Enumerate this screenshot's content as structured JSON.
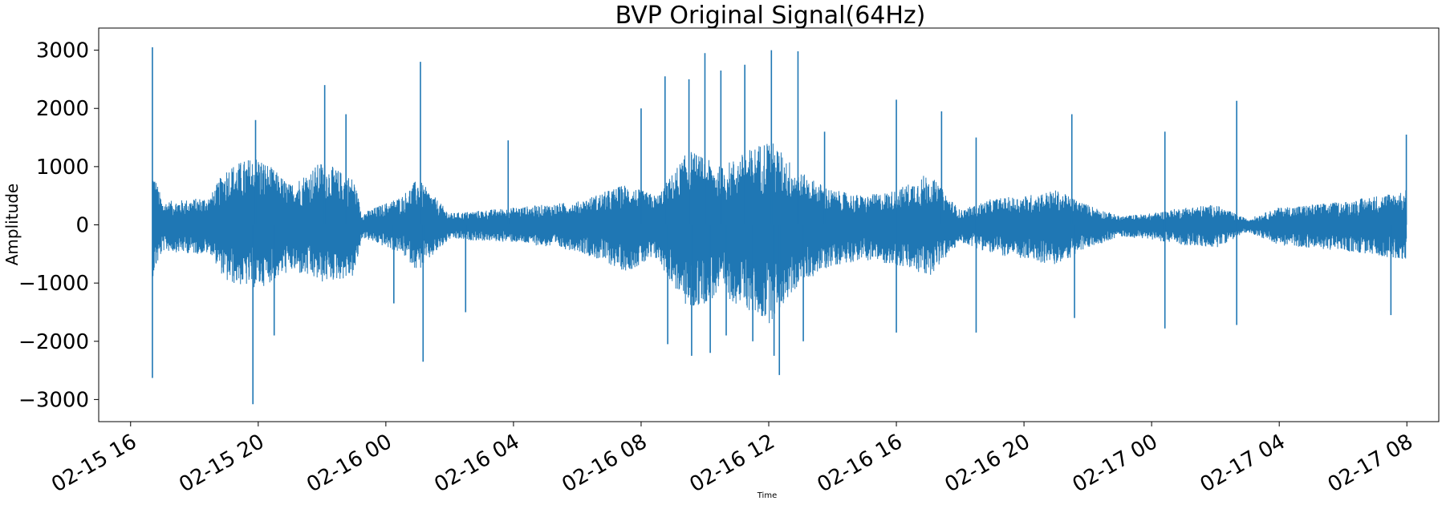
{
  "chart_data": {
    "type": "line",
    "title": "BVP Original Signal(64Hz)",
    "xlabel": "Time",
    "ylabel": "Amplitude",
    "grid": false,
    "legend": "none",
    "series_color": "#1f77b4",
    "x_range": [
      "2016-02-15 15:00",
      "2016-02-17 09:00"
    ],
    "x_data_range": [
      "2016-02-15 16:41",
      "2016-02-17 07:59"
    ],
    "ylim": [
      -3380,
      3380
    ],
    "xticks": [
      {
        "label": "02-15 16",
        "t": "2016-02-15 16:00"
      },
      {
        "label": "02-15 20",
        "t": "2016-02-15 20:00"
      },
      {
        "label": "02-16 00",
        "t": "2016-02-16 00:00"
      },
      {
        "label": "02-16 04",
        "t": "2016-02-16 04:00"
      },
      {
        "label": "02-16 08",
        "t": "2016-02-16 08:00"
      },
      {
        "label": "02-16 12",
        "t": "2016-02-16 12:00"
      },
      {
        "label": "02-16 16",
        "t": "2016-02-16 16:00"
      },
      {
        "label": "02-16 20",
        "t": "2016-02-16 20:00"
      },
      {
        "label": "02-17 00",
        "t": "2016-02-17 00:00"
      },
      {
        "label": "02-17 04",
        "t": "2016-02-17 04:00"
      },
      {
        "label": "02-17 08",
        "t": "2016-02-17 08:00"
      }
    ],
    "yticks": [
      {
        "label": "3000",
        "v": 3000
      },
      {
        "label": "2000",
        "v": 2000
      },
      {
        "label": "1000",
        "v": 1000
      },
      {
        "label": "0",
        "v": 0
      },
      {
        "label": "−1000",
        "v": -1000
      },
      {
        "label": "−2000",
        "v": -2000
      },
      {
        "label": "−3000",
        "v": -3000
      }
    ],
    "envelope": [
      {
        "t": "2016-02-15 16:41",
        "upper": 1000,
        "lower": -900
      },
      {
        "t": "2016-02-15 17:00",
        "upper": 400,
        "lower": -450
      },
      {
        "t": "2016-02-15 18:00",
        "upper": 450,
        "lower": -500
      },
      {
        "t": "2016-02-15 18:30",
        "upper": 500,
        "lower": -500
      },
      {
        "t": "2016-02-15 19:00",
        "upper": 1000,
        "lower": -1000
      },
      {
        "t": "2016-02-15 20:00",
        "upper": 1200,
        "lower": -1100
      },
      {
        "t": "2016-02-15 21:00",
        "upper": 700,
        "lower": -800
      },
      {
        "t": "2016-02-15 22:00",
        "upper": 1100,
        "lower": -1000
      },
      {
        "t": "2016-02-15 23:00",
        "upper": 800,
        "lower": -900
      },
      {
        "t": "2016-02-15 23:15",
        "upper": 200,
        "lower": -220
      },
      {
        "t": "2016-02-16 00:30",
        "upper": 500,
        "lower": -500
      },
      {
        "t": "2016-02-16 01:00",
        "upper": 800,
        "lower": -800
      },
      {
        "t": "2016-02-16 02:00",
        "upper": 200,
        "lower": -250
      },
      {
        "t": "2016-02-16 04:00",
        "upper": 300,
        "lower": -300
      },
      {
        "t": "2016-02-16 06:00",
        "upper": 400,
        "lower": -450
      },
      {
        "t": "2016-02-16 07:30",
        "upper": 700,
        "lower": -800
      },
      {
        "t": "2016-02-16 08:30",
        "upper": 500,
        "lower": -600
      },
      {
        "t": "2016-02-16 09:30",
        "upper": 1300,
        "lower": -1500
      },
      {
        "t": "2016-02-16 10:30",
        "upper": 1000,
        "lower": -1200
      },
      {
        "t": "2016-02-16 12:00",
        "upper": 1500,
        "lower": -1700
      },
      {
        "t": "2016-02-16 13:00",
        "upper": 900,
        "lower": -1000
      },
      {
        "t": "2016-02-16 14:00",
        "upper": 600,
        "lower": -700
      },
      {
        "t": "2016-02-16 15:00",
        "upper": 500,
        "lower": -600
      },
      {
        "t": "2016-02-16 16:00",
        "upper": 600,
        "lower": -700
      },
      {
        "t": "2016-02-16 17:00",
        "upper": 900,
        "lower": -900
      },
      {
        "t": "2016-02-16 18:00",
        "upper": 250,
        "lower": -300
      },
      {
        "t": "2016-02-16 19:00",
        "upper": 450,
        "lower": -500
      },
      {
        "t": "2016-02-16 20:00",
        "upper": 500,
        "lower": -600
      },
      {
        "t": "2016-02-16 21:00",
        "upper": 600,
        "lower": -700
      },
      {
        "t": "2016-02-16 22:00",
        "upper": 350,
        "lower": -400
      },
      {
        "t": "2016-02-16 23:00",
        "upper": 150,
        "lower": -200
      },
      {
        "t": "2016-02-17 00:00",
        "upper": 200,
        "lower": -250
      },
      {
        "t": "2016-02-17 01:00",
        "upper": 300,
        "lower": -350
      },
      {
        "t": "2016-02-17 02:00",
        "upper": 350,
        "lower": -400
      },
      {
        "t": "2016-02-17 03:00",
        "upper": 100,
        "lower": -120
      },
      {
        "t": "2016-02-17 04:00",
        "upper": 300,
        "lower": -350
      },
      {
        "t": "2016-02-17 06:00",
        "upper": 400,
        "lower": -450
      },
      {
        "t": "2016-02-17 07:59",
        "upper": 600,
        "lower": -600
      }
    ],
    "spikes": [
      {
        "t": "2016-02-15 16:41",
        "value": 3050
      },
      {
        "t": "2016-02-15 16:41",
        "value": -2630
      },
      {
        "t": "2016-02-15 19:50",
        "value": -3080
      },
      {
        "t": "2016-02-15 19:55",
        "value": 1800
      },
      {
        "t": "2016-02-15 20:30",
        "value": -1900
      },
      {
        "t": "2016-02-15 22:05",
        "value": 2400
      },
      {
        "t": "2016-02-15 22:45",
        "value": 1900
      },
      {
        "t": "2016-02-16 01:05",
        "value": 2800
      },
      {
        "t": "2016-02-16 01:10",
        "value": -2350
      },
      {
        "t": "2016-02-16 00:15",
        "value": -1350
      },
      {
        "t": "2016-02-16 02:30",
        "value": -1500
      },
      {
        "t": "2016-02-16 03:50",
        "value": 1450
      },
      {
        "t": "2016-02-16 08:00",
        "value": 2000
      },
      {
        "t": "2016-02-16 08:45",
        "value": 2550
      },
      {
        "t": "2016-02-16 08:50",
        "value": -2050
      },
      {
        "t": "2016-02-16 09:30",
        "value": 2500
      },
      {
        "t": "2016-02-16 09:35",
        "value": -2250
      },
      {
        "t": "2016-02-16 10:00",
        "value": 2950
      },
      {
        "t": "2016-02-16 10:10",
        "value": -2200
      },
      {
        "t": "2016-02-16 10:30",
        "value": 2650
      },
      {
        "t": "2016-02-16 10:40",
        "value": -1900
      },
      {
        "t": "2016-02-16 11:15",
        "value": 2750
      },
      {
        "t": "2016-02-16 11:30",
        "value": -2000
      },
      {
        "t": "2016-02-16 12:05",
        "value": 3000
      },
      {
        "t": "2016-02-16 12:10",
        "value": -2250
      },
      {
        "t": "2016-02-16 12:20",
        "value": -2580
      },
      {
        "t": "2016-02-16 12:55",
        "value": 2980
      },
      {
        "t": "2016-02-16 13:05",
        "value": -2000
      },
      {
        "t": "2016-02-16 13:45",
        "value": 1600
      },
      {
        "t": "2016-02-16 16:00",
        "value": 2150
      },
      {
        "t": "2016-02-16 16:00",
        "value": -1850
      },
      {
        "t": "2016-02-16 17:25",
        "value": 1950
      },
      {
        "t": "2016-02-16 18:30",
        "value": 1500
      },
      {
        "t": "2016-02-16 18:30",
        "value": -1850
      },
      {
        "t": "2016-02-16 21:30",
        "value": 1900
      },
      {
        "t": "2016-02-16 21:35",
        "value": -1600
      },
      {
        "t": "2016-02-17 00:25",
        "value": 1600
      },
      {
        "t": "2016-02-17 00:25",
        "value": -1780
      },
      {
        "t": "2016-02-17 02:40",
        "value": 2130
      },
      {
        "t": "2016-02-17 02:40",
        "value": -1720
      },
      {
        "t": "2016-02-17 07:59",
        "value": 1550
      },
      {
        "t": "2016-02-17 07:30",
        "value": -1550
      }
    ]
  }
}
